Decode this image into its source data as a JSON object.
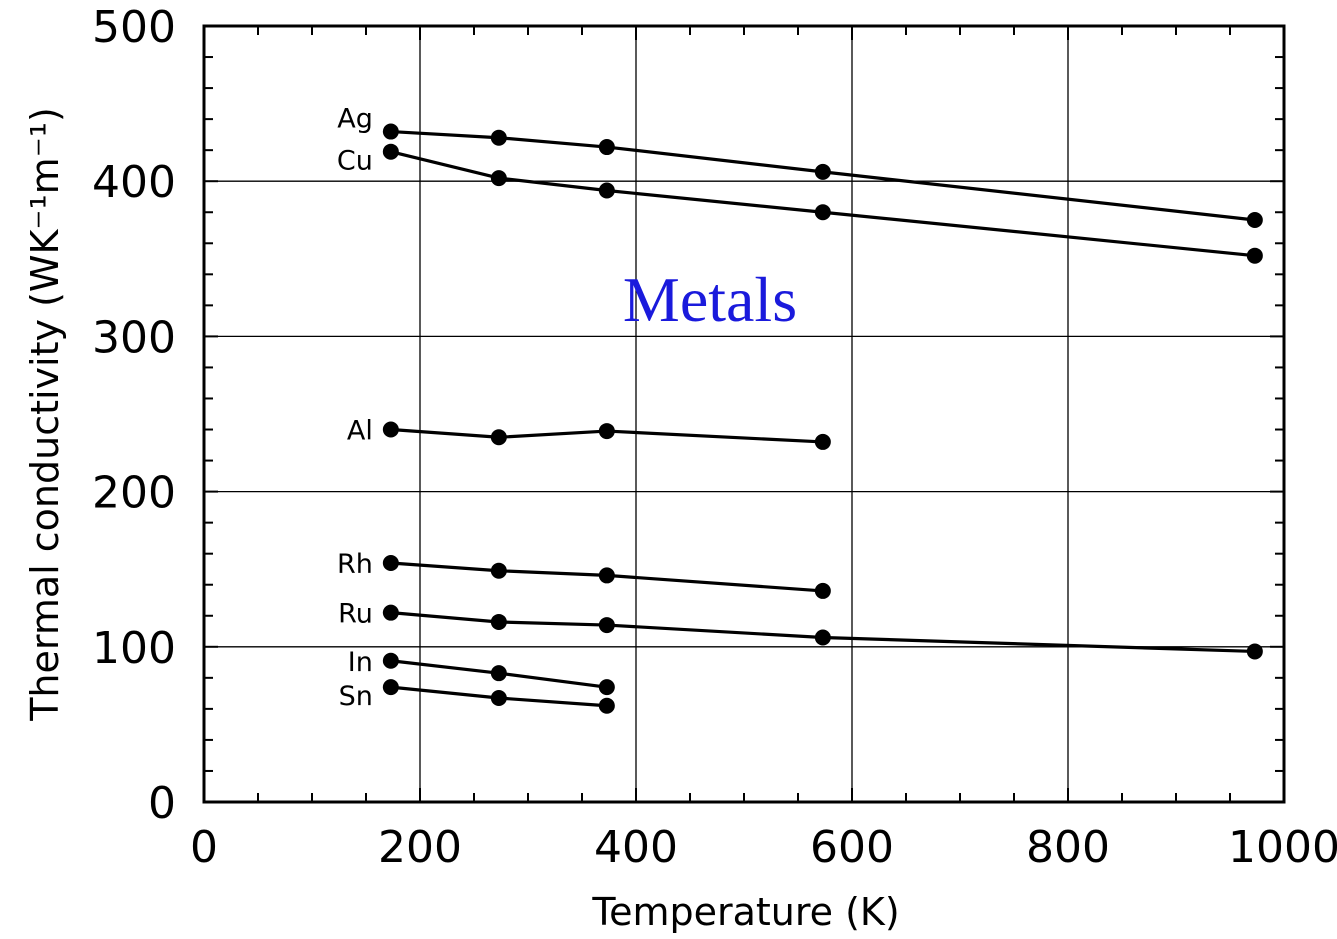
{
  "chart_data": {
    "type": "line",
    "title": "",
    "annotation": "Metals",
    "xlabel": "Temperature (K)",
    "ylabel": "Thermal conductivity (WK⁻¹m⁻¹)",
    "xlim": [
      0,
      1000
    ],
    "ylim": [
      0,
      500
    ],
    "x_ticks": [
      "0",
      "200",
      "400",
      "600",
      "800",
      "1000"
    ],
    "y_ticks": [
      "0",
      "100",
      "200",
      "300",
      "400",
      "500"
    ],
    "grid": true,
    "series": [
      {
        "name": "Ag",
        "points": [
          [
            173,
            432
          ],
          [
            273,
            428
          ],
          [
            373,
            422
          ],
          [
            573,
            406
          ],
          [
            973,
            375
          ]
        ]
      },
      {
        "name": "Cu",
        "points": [
          [
            173,
            419
          ],
          [
            273,
            402
          ],
          [
            373,
            394
          ],
          [
            573,
            380
          ],
          [
            973,
            352
          ]
        ]
      },
      {
        "name": "Al",
        "points": [
          [
            173,
            240
          ],
          [
            273,
            235
          ],
          [
            373,
            239
          ],
          [
            573,
            232
          ]
        ]
      },
      {
        "name": "Rh",
        "points": [
          [
            173,
            154
          ],
          [
            273,
            149
          ],
          [
            373,
            146
          ],
          [
            573,
            136
          ]
        ]
      },
      {
        "name": "Ru",
        "points": [
          [
            173,
            122
          ],
          [
            273,
            116
          ],
          [
            373,
            114
          ],
          [
            573,
            106
          ],
          [
            973,
            97
          ]
        ]
      },
      {
        "name": "In",
        "points": [
          [
            173,
            91
          ],
          [
            273,
            83
          ],
          [
            373,
            74
          ]
        ]
      },
      {
        "name": "Sn",
        "points": [
          [
            173,
            74
          ],
          [
            273,
            67
          ],
          [
            373,
            62
          ]
        ]
      }
    ]
  },
  "colors": {
    "annotation": "#1a1adc",
    "lines": "#000000"
  }
}
